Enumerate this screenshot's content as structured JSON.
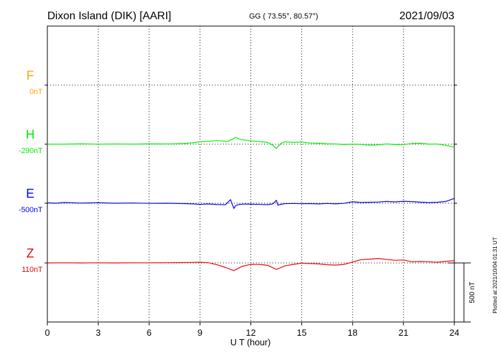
{
  "header": {
    "station": "Dixon Island (DIK)  [AARI]",
    "coords": "GG ( 73.55°,  80.57°)",
    "date": "2021/09/03"
  },
  "footer_note": "Plotted at 2021/10/04 01:31  UT",
  "scale_label": "500 nT",
  "chart_data": {
    "type": "line",
    "title": "Dixon Island (DIK)  [AARI]",
    "xlabel": "U T (hour)",
    "xlim": [
      0,
      24
    ],
    "x_ticks": [
      "0",
      "3",
      "6",
      "9",
      "12",
      "15",
      "18",
      "21",
      "24"
    ],
    "grid": true,
    "series": [
      {
        "name": "F",
        "baseline_label": "0nT",
        "color": "#ffa500",
        "x": [],
        "y": []
      },
      {
        "name": "H",
        "baseline_label": "-290nT",
        "color": "#00ee00",
        "x": [
          0,
          1,
          2,
          3,
          4,
          5,
          6,
          7,
          7.5,
          8,
          8.5,
          9,
          9.5,
          10,
          10.3,
          10.6,
          10.9,
          11.1,
          11.3,
          11.6,
          12,
          12.5,
          13,
          13.3,
          13.5,
          13.6,
          13.8,
          14,
          14.5,
          15,
          15.5,
          16,
          16.5,
          17,
          17.5,
          18,
          18.5,
          19,
          19.5,
          20,
          20.5,
          21,
          21.5,
          22,
          22.5,
          23,
          23.5,
          24
        ],
        "y": [
          0,
          0,
          3,
          0,
          2,
          0,
          3,
          2,
          3,
          6,
          11,
          20,
          25,
          30,
          28,
          22,
          40,
          58,
          42,
          36,
          28,
          22,
          15,
          -10,
          -38,
          -20,
          8,
          20,
          15,
          18,
          10,
          8,
          3,
          2,
          -3,
          0,
          -2,
          -8,
          -6,
          2,
          -3,
          -4,
          6,
          8,
          0,
          1,
          -10,
          -26
        ]
      },
      {
        "name": "E",
        "baseline_label": "-500nT",
        "color": "#0000ee",
        "x": [
          0,
          0.5,
          1,
          2,
          3,
          4,
          5,
          6,
          7,
          8,
          8.5,
          9,
          9.5,
          10,
          10.5,
          10.8,
          11,
          11.1,
          11.3,
          11.6,
          12,
          12.5,
          13,
          13.3,
          13.5,
          13.6,
          13.8,
          14,
          14.5,
          15,
          15.5,
          16,
          16.5,
          17,
          17.5,
          18,
          18.5,
          19,
          19.5,
          20,
          20.5,
          21,
          21.5,
          22,
          22.5,
          23,
          23.5,
          24
        ],
        "y": [
          3,
          0,
          6,
          1,
          4,
          0,
          2,
          -1,
          0,
          -3,
          -5,
          -10,
          -6,
          -11,
          -13,
          30,
          -45,
          -20,
          -11,
          -7,
          -8,
          -10,
          -12,
          -5,
          25,
          -16,
          -9,
          -4,
          -2,
          -4,
          -3,
          -6,
          -2,
          -5,
          -1,
          12,
          6,
          8,
          10,
          15,
          11,
          17,
          14,
          9,
          5,
          8,
          15,
          40
        ]
      },
      {
        "name": "Z",
        "baseline_label": "110nT",
        "color": "#ee0000",
        "x": [
          0,
          1,
          2,
          3,
          4,
          5,
          6,
          7,
          8,
          8.5,
          9,
          9.5,
          10,
          10.5,
          11,
          11.5,
          12,
          12.5,
          13,
          13.5,
          14,
          14.5,
          15,
          15.5,
          16,
          16.5,
          17,
          17.5,
          18,
          18.5,
          19,
          19.5,
          20,
          20.5,
          21,
          21.5,
          22,
          22.5,
          23,
          23.5,
          24
        ],
        "y": [
          0,
          1,
          0,
          1,
          0,
          1,
          1,
          2,
          3,
          4,
          6,
          2,
          -15,
          -38,
          -65,
          -28,
          -12,
          -13,
          -20,
          -55,
          -25,
          -12,
          -2,
          -5,
          -8,
          -15,
          -18,
          -12,
          8,
          28,
          32,
          38,
          30,
          22,
          25,
          10,
          12,
          10,
          6,
          14,
          20
        ]
      }
    ]
  }
}
